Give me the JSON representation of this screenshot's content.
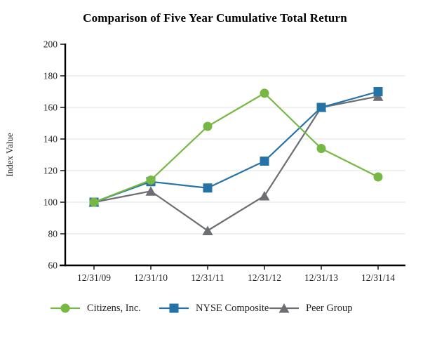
{
  "title": "Comparison of Five Year Cumulative Total Return",
  "chart_data": {
    "type": "line",
    "x": [
      "12/31/09",
      "12/31/10",
      "12/31/11",
      "12/31/12",
      "12/31/13",
      "12/31/14"
    ],
    "series": [
      {
        "name": "Peer Group",
        "marker": "triangle",
        "color": "#6d6e71",
        "values": [
          100,
          107,
          82,
          104,
          160,
          167
        ]
      },
      {
        "name": "NYSE Composite",
        "marker": "square",
        "color": "#2573a6",
        "values": [
          100,
          113,
          109,
          126,
          160,
          170
        ]
      },
      {
        "name": "Citizens, Inc.",
        "marker": "circle",
        "color": "#76b843",
        "values": [
          100,
          114,
          148,
          169,
          134,
          116
        ]
      }
    ],
    "legend_order": [
      2,
      1,
      0
    ],
    "ylabel": "Index Value",
    "ylim": [
      60,
      200
    ],
    "yticks": [
      60,
      80,
      100,
      120,
      140,
      160,
      180,
      200
    ],
    "grid": true,
    "legend_position": "bottom"
  },
  "colors": {
    "grid": "#e7e7e7",
    "axis": "#000000",
    "text": "#231f20",
    "background": "#ffffff"
  }
}
